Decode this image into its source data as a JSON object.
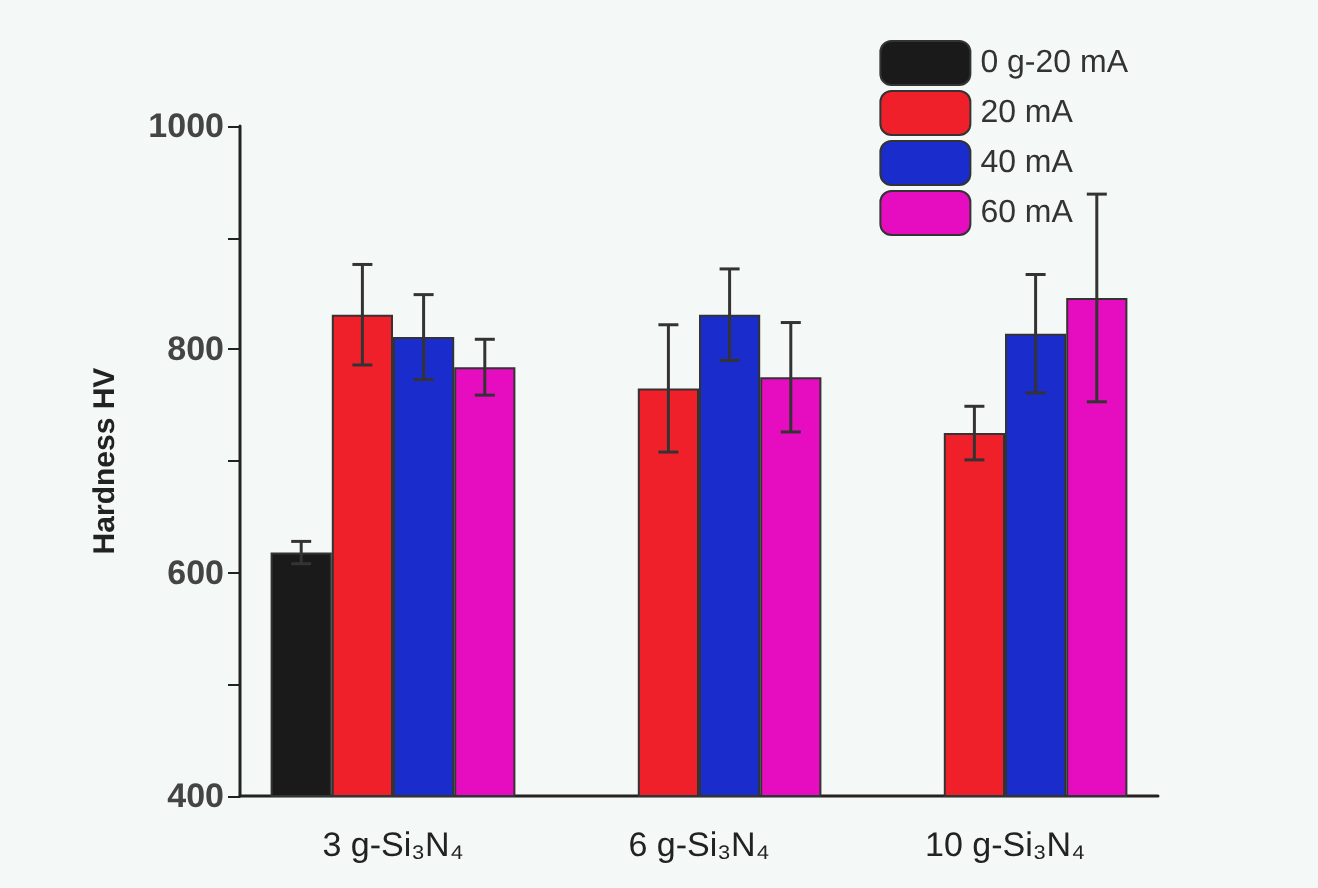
{
  "chart_data": {
    "type": "bar",
    "ylabel": "Hardness HV",
    "categories": [
      "3 g-Si₃N₄",
      "6 g-Si₃N₄",
      "10 g-Si₃N₄"
    ],
    "series": [
      {
        "name": "0 g-20 mA",
        "color": "#1a1a1a",
        "values": [
          618,
          null,
          null
        ],
        "errors": [
          10,
          null,
          null
        ]
      },
      {
        "name": "20 mA",
        "color": "#f0202a",
        "values": [
          831,
          765,
          725
        ],
        "errors": [
          45,
          57,
          24
        ]
      },
      {
        "name": "40 mA",
        "color": "#1a2ccc",
        "values": [
          811,
          831,
          814
        ],
        "errors": [
          38,
          41,
          53
        ]
      },
      {
        "name": "60 mA",
        "color": "#e60cbf",
        "values": [
          784,
          775,
          846
        ],
        "errors": [
          25,
          49,
          93
        ]
      }
    ],
    "ylim": [
      400,
      1000
    ],
    "yticks": [
      400,
      {
        "value": 500,
        "label": null
      },
      600,
      {
        "value": 700,
        "label": null
      },
      800,
      {
        "value": 900,
        "label": null
      },
      1000
    ],
    "grid": false,
    "legend": "top right"
  }
}
